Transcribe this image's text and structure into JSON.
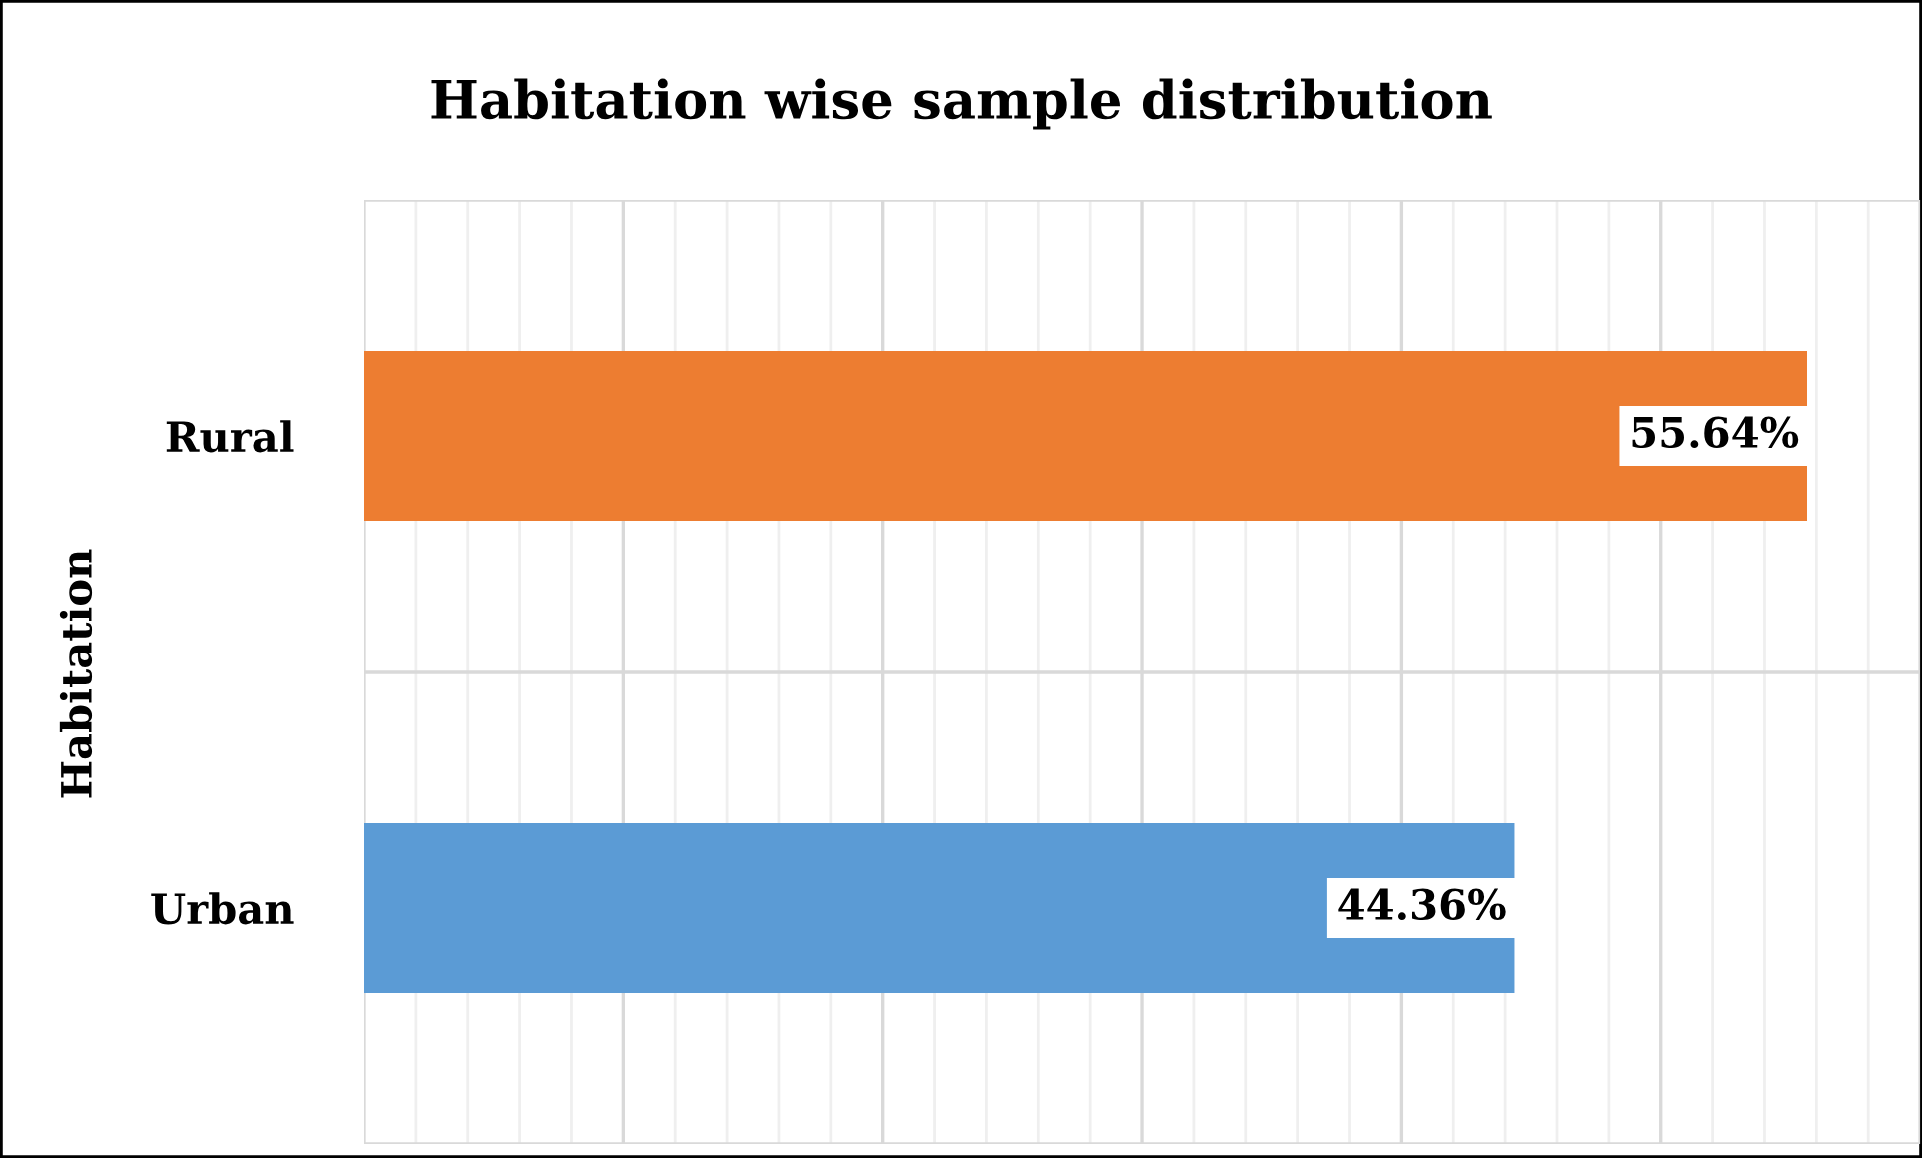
{
  "chart_data": {
    "type": "bar",
    "orientation": "horizontal",
    "title": "Habitation wise sample distribution",
    "ylabel": "Habitation",
    "categories": [
      "Rural",
      "Urban"
    ],
    "values": [
      55.64,
      44.36
    ],
    "colors": [
      "#ed7d31",
      "#5b9bd5"
    ],
    "value_labels": [
      "55.64%",
      "44.36%"
    ],
    "xlim": [
      0,
      60
    ],
    "xticks": [
      {
        "value": 0,
        "label": null
      },
      {
        "value": 10,
        "label": null
      },
      {
        "value": 20,
        "label": null
      },
      {
        "value": 30,
        "label": null
      },
      {
        "value": 40,
        "label": null
      },
      {
        "value": 50,
        "label": null
      },
      {
        "value": 60,
        "label": null
      }
    ],
    "tick_labels": "y",
    "grid": true
  }
}
